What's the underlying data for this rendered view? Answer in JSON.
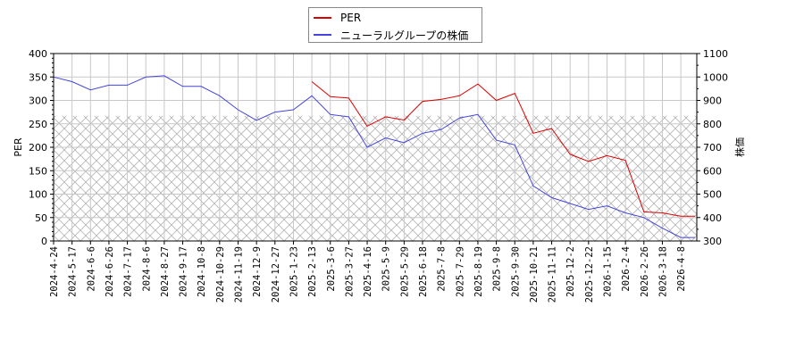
{
  "legend": {
    "items": [
      {
        "label": "PER",
        "color": "#dd0000"
      },
      {
        "label": "ニューラルグループの株価",
        "color": "#4444dd"
      }
    ]
  },
  "axes": {
    "left_label": "PER",
    "right_label": "株価",
    "left_ticks": [
      "0",
      "50",
      "100",
      "150",
      "200",
      "250",
      "300",
      "350",
      "400"
    ],
    "right_ticks": [
      "300",
      "400",
      "500",
      "600",
      "700",
      "800",
      "900",
      "1000",
      "1100"
    ],
    "x_ticks": [
      "2024-4-24",
      "2024-5-17",
      "2024-6-6",
      "2024-6-26",
      "2024-7-17",
      "2024-8-6",
      "2024-8-27",
      "2024-9-17",
      "2024-10-8",
      "2024-10-29",
      "2024-11-19",
      "2024-12-9",
      "2024-12-27",
      "2025-1-23",
      "2025-2-13",
      "2025-3-6",
      "2025-3-27",
      "2025-4-16",
      "2025-5-9",
      "2025-5-29",
      "2025-6-18",
      "2025-7-8",
      "2025-7-29",
      "2025-8-19",
      "2025-9-8",
      "2025-9-30",
      "2025-10-21",
      "2025-11-11",
      "2025-12-2",
      "2025-12-22",
      "2026-1-15",
      "2026-2-4",
      "2026-2-26",
      "2026-3-18",
      "2026-4-8"
    ]
  },
  "chart_data": {
    "type": "line",
    "title": "",
    "xlabel": "",
    "ylabel": "PER",
    "ylabel_right": "株価",
    "ylim": [
      0,
      400
    ],
    "ylim_right": [
      300,
      1100
    ],
    "grid": true,
    "legend_position": "top-center",
    "hatched_region_per": [
      0,
      267
    ],
    "x": [
      "2024-4-24",
      "2024-5-17",
      "2024-6-6",
      "2024-6-26",
      "2024-7-17",
      "2024-8-6",
      "2024-8-27",
      "2024-9-17",
      "2024-10-8",
      "2024-10-29",
      "2024-11-19",
      "2024-12-9",
      "2024-12-27",
      "2025-1-23",
      "2025-2-13",
      "2025-3-6",
      "2025-3-27",
      "2025-4-16",
      "2025-5-9",
      "2025-5-29",
      "2025-6-18",
      "2025-7-8",
      "2025-7-29",
      "2025-8-19",
      "2025-9-8",
      "2025-9-30",
      "2025-10-21",
      "2025-11-11",
      "2025-12-2",
      "2025-12-22",
      "2026-1-15",
      "2026-2-4",
      "2026-2-26",
      "2026-3-18",
      "2026-4-8"
    ],
    "series": [
      {
        "name": "PER",
        "axis": "left",
        "color": "#dd0000",
        "values": [
          null,
          null,
          null,
          null,
          null,
          null,
          null,
          null,
          null,
          null,
          null,
          null,
          null,
          null,
          340,
          308,
          305,
          245,
          265,
          258,
          298,
          302,
          310,
          335,
          300,
          315,
          230,
          240,
          185,
          170,
          182,
          172,
          62,
          60,
          53
        ]
      },
      {
        "name": "ニューラルグループの株価",
        "axis": "right",
        "color": "#4444dd",
        "values": [
          1000,
          980,
          945,
          965,
          965,
          1000,
          1005,
          960,
          960,
          920,
          860,
          815,
          850,
          860,
          920,
          840,
          830,
          700,
          740,
          720,
          760,
          775,
          825,
          840,
          730,
          710,
          535,
          485,
          460,
          435,
          450,
          420,
          400,
          355,
          315
        ]
      }
    ]
  }
}
